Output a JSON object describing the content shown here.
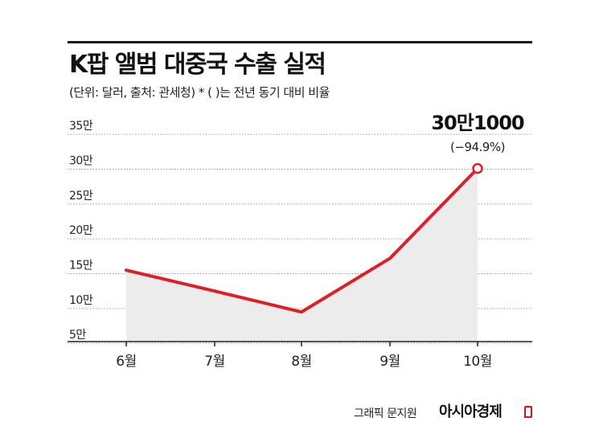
{
  "title": "K팝 앨범 대중국 수출 실적",
  "subtitle": "(단위: 달러, 출처: 관세청)  * ( )는 전년 동기 대비 비율",
  "credit": {
    "graphic": "그래픽 문지원",
    "brand": "아시아경제"
  },
  "colors": {
    "line": "#dd1f26",
    "area": "#ececec",
    "grid": "#9a9a9a",
    "axis": "#222222"
  },
  "chart_data": {
    "type": "area",
    "categories": [
      "6월",
      "7월",
      "8월",
      "9월",
      "10월"
    ],
    "series": [
      {
        "values": [
          155000,
          125000,
          95000,
          172000,
          301000
        ]
      }
    ],
    "yticks": [
      {
        "value": 50000,
        "label": "5만"
      },
      {
        "value": 100000,
        "label": "10만"
      },
      {
        "value": 150000,
        "label": "15만"
      },
      {
        "value": 200000,
        "label": "20만"
      },
      {
        "value": 250000,
        "label": "25만"
      },
      {
        "value": 300000,
        "label": "30만"
      },
      {
        "value": 350000,
        "label": "35만"
      }
    ],
    "ylim": [
      30000,
      350000
    ],
    "grid": true,
    "annotation": {
      "index": 4,
      "value_label": "30만1000",
      "change_label": "(−94.9%)"
    }
  }
}
